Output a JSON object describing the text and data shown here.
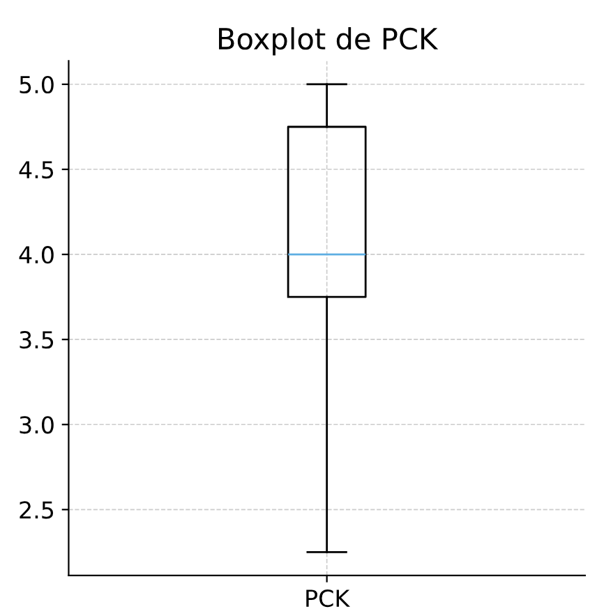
{
  "chart_data": {
    "type": "box",
    "title": "Boxplot de PCK",
    "categories": [
      "PCK"
    ],
    "series": [
      {
        "color": "#000000",
        "boxes": [
          {
            "low": 2.25,
            "q1": 3.75,
            "median": 4.0,
            "q3": 4.75,
            "high": 5.0
          }
        ]
      }
    ],
    "ylim": [
      2.1125,
      5.1375
    ],
    "yticks": [
      2.5,
      {
        "value": 3,
        "label": "3.0"
      },
      3.5,
      {
        "value": 4,
        "label": "4.0"
      },
      4.5,
      {
        "value": 5,
        "label": "5.0"
      }
    ],
    "grid": true
  }
}
